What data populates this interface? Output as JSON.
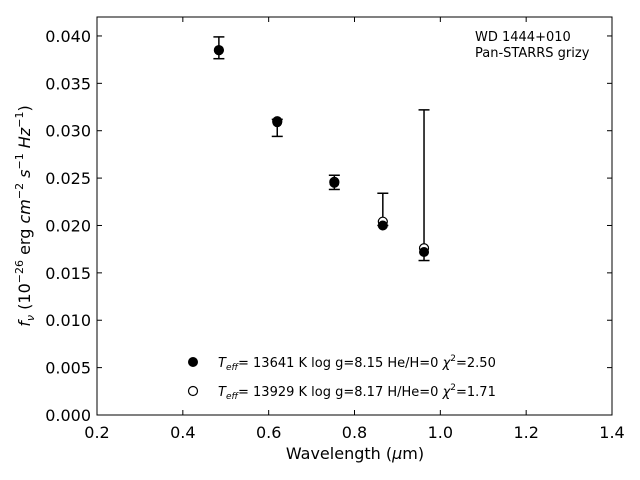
{
  "chart_data": {
    "type": "scatter",
    "annotation": [
      "WD 1444+010",
      "Pan-STARRS grizy"
    ],
    "xlabel": {
      "text": "Wavelength (",
      "mu": "μ",
      "unit": "m)"
    },
    "ylabel": {
      "sym": "f",
      "sub": "ν",
      "a": " (10",
      "e1": "−26",
      "b": " erg ",
      "cm": "cm",
      "e2": "−2",
      "s": " s",
      "e3": "−1",
      "hz": " Hz",
      "e4": "−1",
      "c": ")"
    },
    "xlim": [
      0.2,
      1.4
    ],
    "ylim": [
      0.0,
      0.042
    ],
    "x_ticks": [
      0.2,
      0.4,
      0.6,
      0.8,
      1.0,
      1.2,
      1.4
    ],
    "x_tick_labels": [
      "0.2",
      "0.4",
      "0.6",
      "0.8",
      "1.0",
      "1.2",
      "1.4"
    ],
    "y_ticks": [
      0.0,
      0.005,
      0.01,
      0.015,
      0.02,
      0.025,
      0.03,
      0.035,
      0.04
    ],
    "y_tick_labels": [
      "0.000",
      "0.005",
      "0.010",
      "0.015",
      "0.020",
      "0.025",
      "0.030",
      "0.035",
      "0.040"
    ],
    "grid": false,
    "observed": [
      {
        "x": 0.484,
        "y": 0.0383,
        "ylo": 0.0376,
        "yhi": 0.0399
      },
      {
        "x": 0.62,
        "y": 0.031,
        "ylo": 0.0294,
        "yhi": 0.0312
      },
      {
        "x": 0.753,
        "y": 0.0247,
        "ylo": 0.0238,
        "yhi": 0.0253
      },
      {
        "x": 0.866,
        "y": 0.0203,
        "ylo": 0.02,
        "yhi": 0.0234
      },
      {
        "x": 0.962,
        "y": 0.0176,
        "ylo": 0.0163,
        "yhi": 0.0322
      }
    ],
    "series": [
      {
        "marker": "filled-circle",
        "x": [
          0.484,
          0.62,
          0.753,
          0.866,
          0.962
        ],
        "y": [
          0.0385,
          0.0309,
          0.0245,
          0.02,
          0.0172
        ],
        "legend": {
          "t": "T",
          "sub": "eff",
          "rest": "= 13641 K  log g=8.15  He/H=0  ",
          "chi": "χ",
          "sup": "2",
          "tail": "=2.50"
        }
      },
      {
        "marker": "open-circle",
        "x": [
          0.484,
          0.62,
          0.753,
          0.866,
          0.962
        ],
        "y": [
          0.0385,
          0.031,
          0.0246,
          0.0204,
          0.0176
        ],
        "legend": {
          "t": "T",
          "sub": "eff",
          "rest": "= 13929 K  log g=8.17  H/He=0  ",
          "chi": "χ",
          "sup": "2",
          "tail": "=1.71"
        }
      }
    ],
    "colors": {
      "marker": "#000000",
      "axes": "#000000",
      "background": "#ffffff"
    }
  }
}
